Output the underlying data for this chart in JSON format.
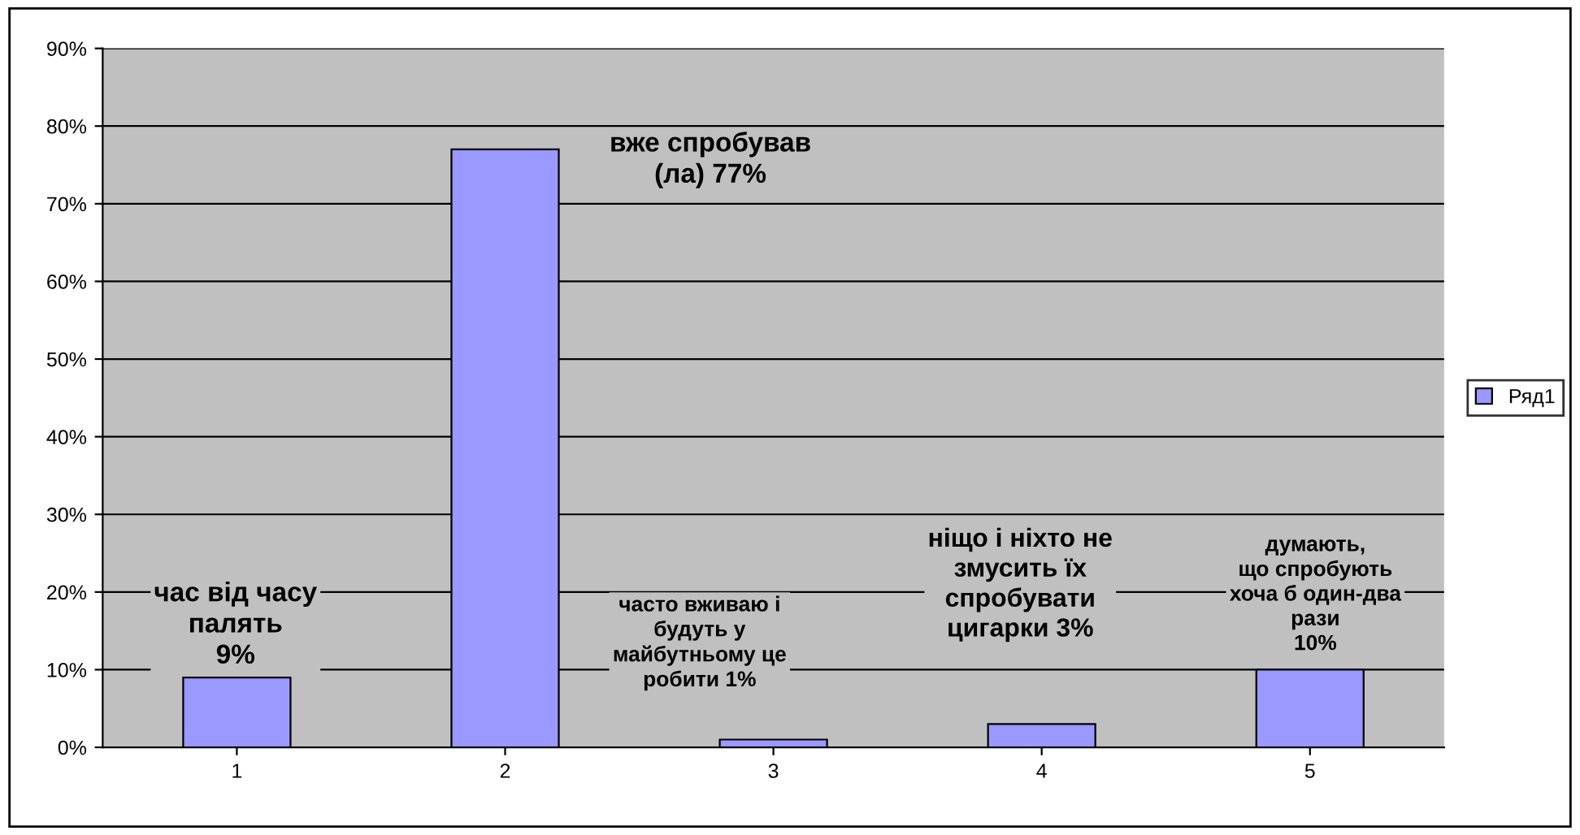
{
  "chart_data": {
    "type": "bar",
    "categories": [
      "1",
      "2",
      "3",
      "4",
      "5"
    ],
    "series": [
      {
        "name": "Ряд1",
        "color": "#9999ff",
        "values": [
          9,
          77,
          1,
          3,
          10
        ]
      }
    ],
    "ylim": [
      0,
      90
    ],
    "yticks": [
      {
        "value": 0,
        "label": "0%"
      },
      {
        "value": 10,
        "label": "10%"
      },
      {
        "value": 20,
        "label": "20%"
      },
      {
        "value": 30,
        "label": "30%"
      },
      {
        "value": 40,
        "label": "40%"
      },
      {
        "value": 50,
        "label": "50%"
      },
      {
        "value": 60,
        "label": "60%"
      },
      {
        "value": 70,
        "label": "70%"
      },
      {
        "value": 80,
        "label": "80%"
      },
      {
        "value": 90,
        "label": "90%"
      }
    ],
    "grid": "y",
    "legend": "right",
    "annotations": [
      "час від часу\nпалять\n9%",
      "вже спробував\n(ла) 77%",
      "часто вживаю і\nбудуть у\nмайбутньому це\nробити 1%",
      "ніщо і ніхто не\nзмусить їх\nспробувати\nцигарки 3%",
      "думають,\nщо спробують\nхоча б один-два\nрази\n10%"
    ]
  }
}
